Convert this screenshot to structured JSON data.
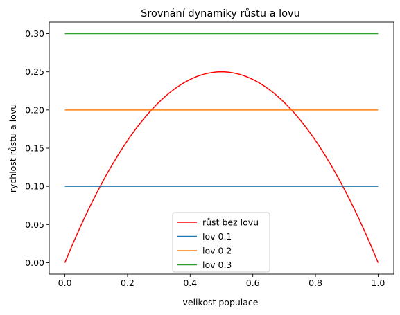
{
  "chart_data": {
    "type": "line",
    "title": "Srovnání dynamiky růstu a lovu",
    "xlabel": "velikost populace",
    "ylabel": "rychlost růstu a lovu",
    "xlim": [
      -0.05,
      1.05
    ],
    "ylim": [
      -0.015,
      0.315
    ],
    "xticks": [
      "0.0",
      "0.2",
      "0.4",
      "0.6",
      "0.8",
      "1.0"
    ],
    "yticks": [
      "0.00",
      "0.05",
      "0.10",
      "0.15",
      "0.20",
      "0.25",
      "0.30"
    ],
    "grid": false,
    "legend_position": "bottom-center",
    "series": [
      {
        "name": "růst bez lovu",
        "color": "#ff0000",
        "function": "x*(1-x)",
        "x": [
          0,
          0.1,
          0.2,
          0.3,
          0.4,
          0.5,
          0.6,
          0.7,
          0.8,
          0.9,
          1.0
        ],
        "y": [
          0,
          0.09,
          0.16,
          0.21,
          0.24,
          0.25,
          0.24,
          0.21,
          0.16,
          0.09,
          0
        ]
      },
      {
        "name": "lov 0.1",
        "color": "#1f77b4",
        "x": [
          0,
          1
        ],
        "y": [
          0.1,
          0.1
        ]
      },
      {
        "name": "lov 0.2",
        "color": "#ff7f0e",
        "x": [
          0,
          1
        ],
        "y": [
          0.2,
          0.2
        ]
      },
      {
        "name": "lov 0.3",
        "color": "#2ca02c",
        "x": [
          0,
          1
        ],
        "y": [
          0.3,
          0.3
        ]
      }
    ]
  }
}
